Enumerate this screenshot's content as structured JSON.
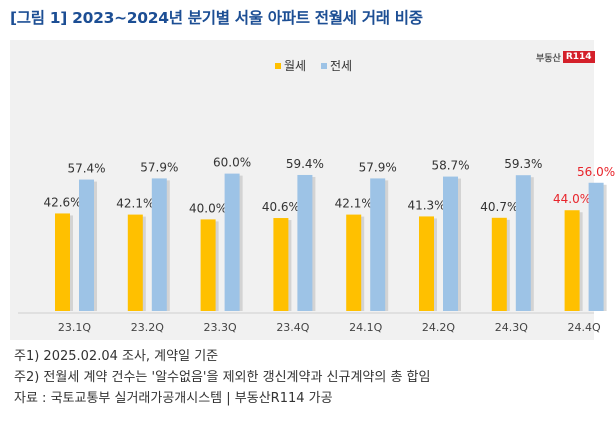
{
  "title": "[그림 1] 2023~2024년 분기별 서울 아파트 전월세 거래 비중",
  "logo": {
    "text": "부동산",
    "mark": "R114"
  },
  "chart_data": {
    "type": "bar",
    "categories": [
      "23.1Q",
      "23.2Q",
      "23.3Q",
      "23.4Q",
      "24.1Q",
      "24.2Q",
      "24.3Q",
      "24.4Q"
    ],
    "series": [
      {
        "name": "월세",
        "color": "#ffc000",
        "values": [
          42.6,
          42.1,
          40.0,
          40.6,
          42.1,
          41.3,
          40.7,
          44.0
        ],
        "labels": [
          "42.6%",
          "42.1%",
          "40.0%",
          "40.6%",
          "42.1%",
          "41.3%",
          "40.7%",
          "44.0%"
        ]
      },
      {
        "name": "전세",
        "color": "#9dc3e6",
        "values": [
          57.4,
          57.9,
          60.0,
          59.4,
          57.9,
          58.7,
          59.3,
          56.0
        ],
        "labels": [
          "57.4%",
          "57.9%",
          "60.0%",
          "59.4%",
          "57.9%",
          "58.7%",
          "59.3%",
          "56.0%"
        ]
      }
    ],
    "highlight": {
      "category_index": 7,
      "label_color": "#e8242b"
    },
    "legend_position": "top-center",
    "grid": false,
    "ylim": [
      0,
      70
    ]
  },
  "notes": [
    "주1) 2025.02.04 조사, 계약일 기준",
    "주2) 전월세 계약 건수는 '알수없음'을 제외한 갱신계약과 신규계약의 총 합임",
    "자료 : 국토교통부 실거래가공개시스템 | 부동산R114 가공"
  ]
}
